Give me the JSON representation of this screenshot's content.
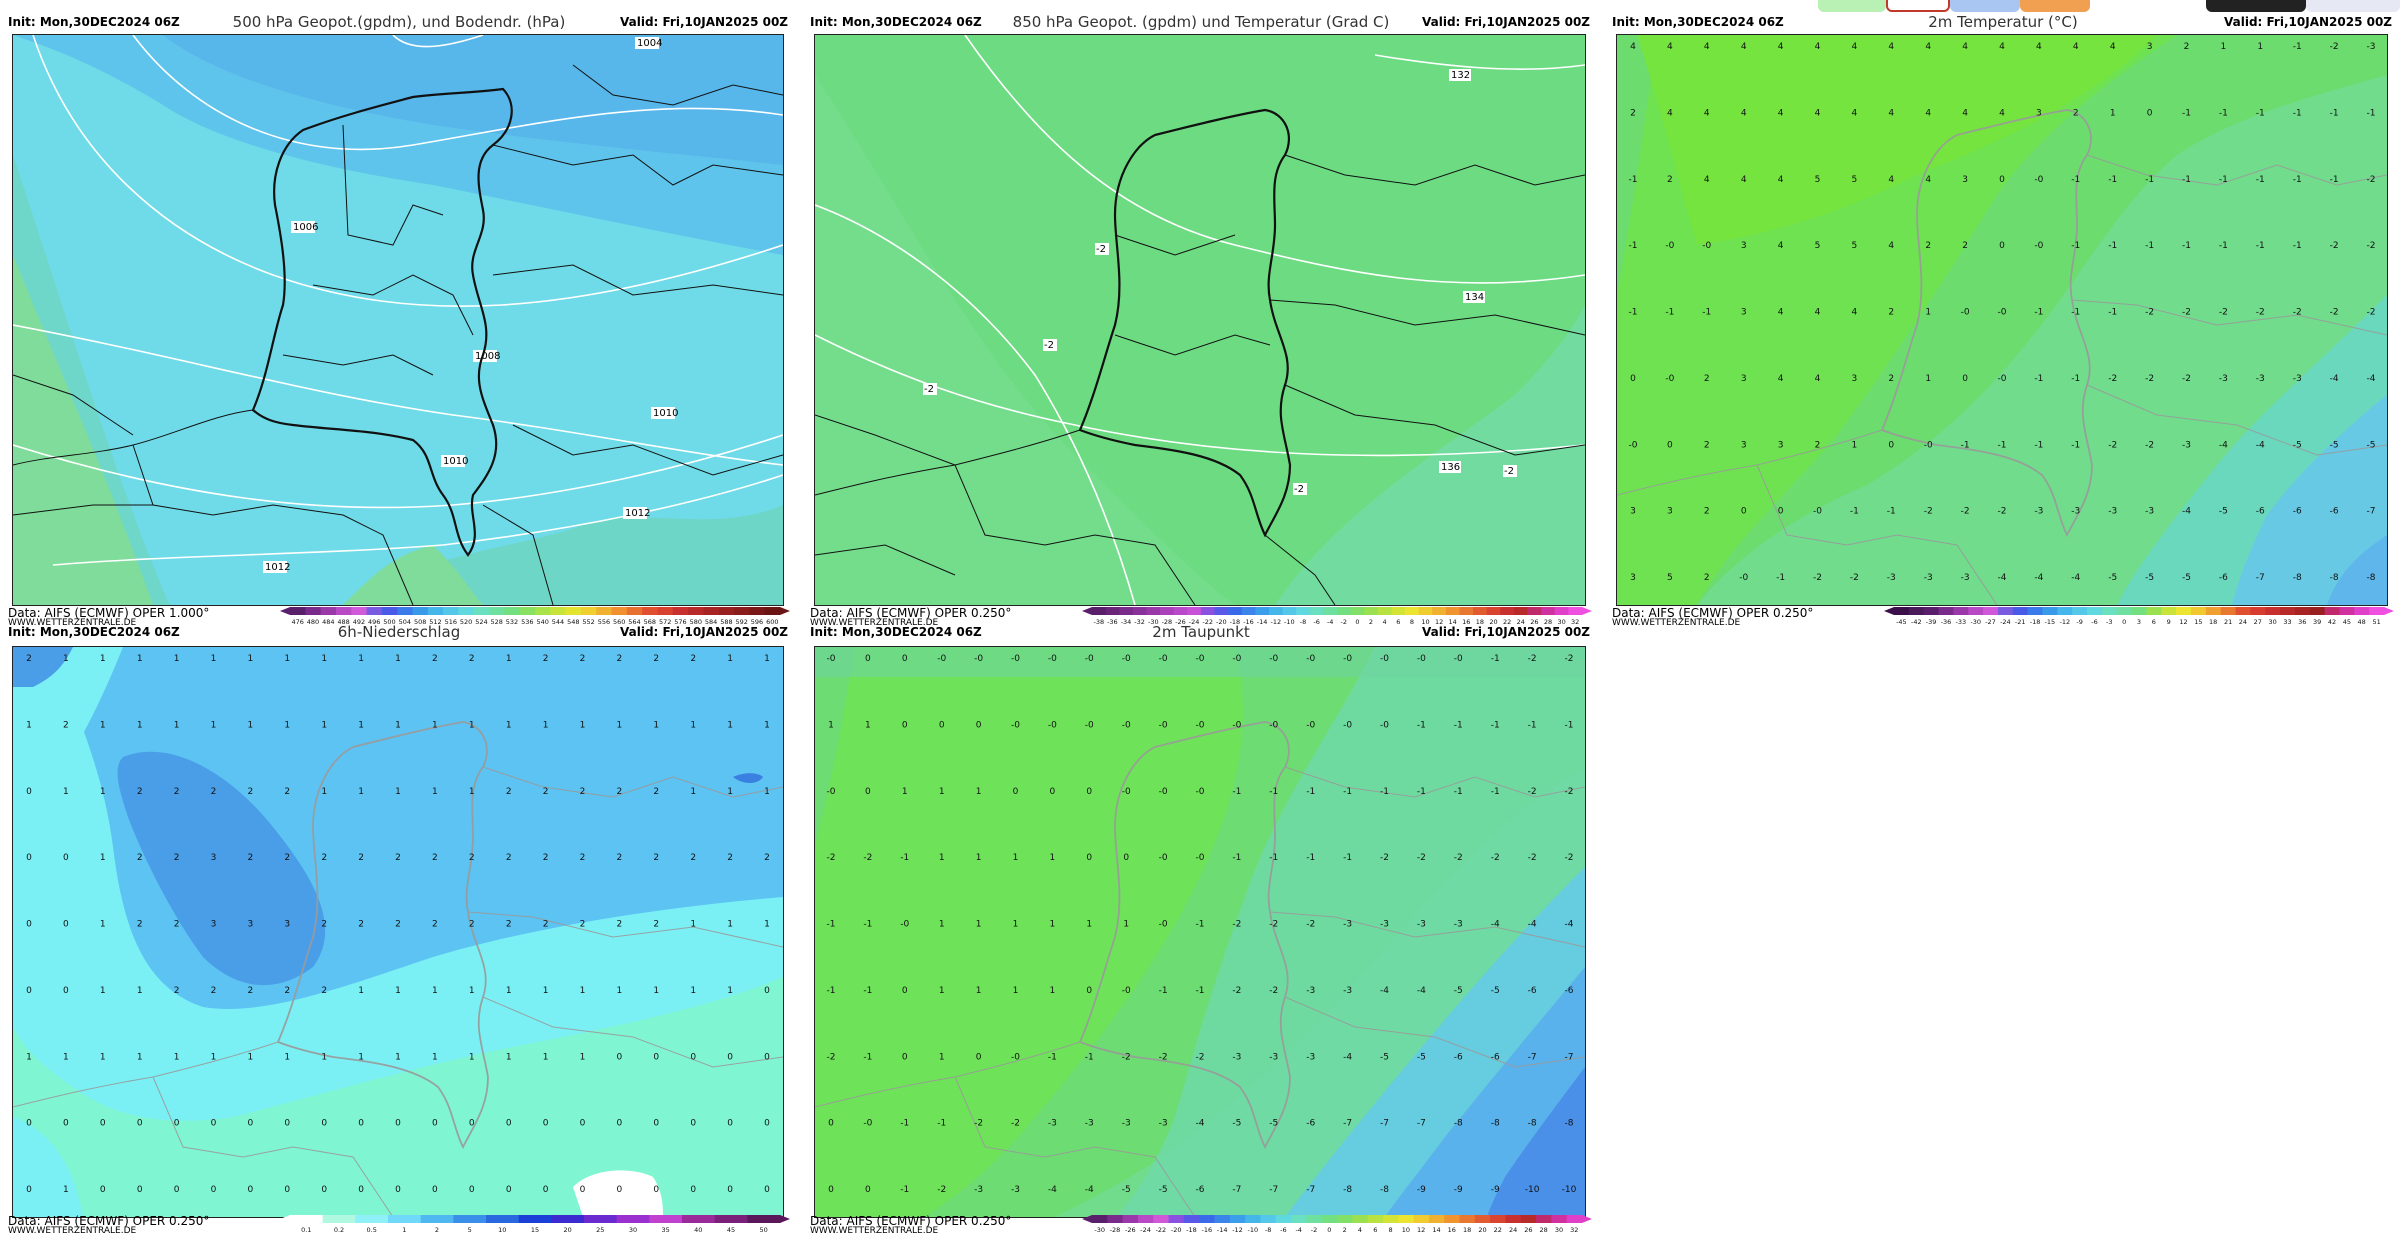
{
  "top_buttons": [
    {
      "name": "green-tab",
      "color": "#b9f0b4"
    },
    {
      "name": "selected-tab",
      "color": "#ffffff",
      "border": "#c0392b"
    },
    {
      "name": "blue-tab",
      "color": "#a9c6f2"
    },
    {
      "name": "orange-tab",
      "color": "#f0a050"
    },
    {
      "name": "dark-tab",
      "color": "#222222"
    },
    {
      "name": "light-tab",
      "color": "#e6e8f4"
    }
  ],
  "panels": [
    {
      "id": "p1",
      "init": "Init: Mon,30DEC2024 06Z",
      "title": "500 hPa Geopot.(gpdm), und Bodendr. (hPa)",
      "valid": "Valid: Fri,10JAN2025 00Z",
      "source": "Data: AIFS (ECMWF) OPER 1.000°",
      "site": "WWW.WETTERZENTRALE.DE",
      "scale_labels": [
        "476",
        "480",
        "484",
        "488",
        "492",
        "496",
        "500",
        "504",
        "508",
        "512",
        "516",
        "520",
        "524",
        "528",
        "532",
        "536",
        "540",
        "544",
        "548",
        "552",
        "556",
        "560",
        "564",
        "568",
        "572",
        "576",
        "580",
        "584",
        "588",
        "592",
        "596",
        "600"
      ],
      "contour_labels": [
        "1004",
        "1006",
        "1008",
        "1010",
        "1010",
        "1012",
        "1012"
      ]
    },
    {
      "id": "p2",
      "init": "Init: Mon,30DEC2024 06Z",
      "title": "850 hPa Geopot. (gpdm) und Temperatur (Grad C)",
      "valid": "Valid: Fri,10JAN2025 00Z",
      "source": "Data: AIFS (ECMWF) OPER 0.250°",
      "site": "WWW.WETTERZENTRALE.DE",
      "scale_labels": [
        "-38",
        "-36",
        "-34",
        "-32",
        "-30",
        "-28",
        "-26",
        "-24",
        "-22",
        "-20",
        "-18",
        "-16",
        "-14",
        "-12",
        "-10",
        "-8",
        "-6",
        "-4",
        "-2",
        "0",
        "2",
        "4",
        "6",
        "8",
        "10",
        "12",
        "14",
        "16",
        "18",
        "20",
        "22",
        "24",
        "26",
        "28",
        "30",
        "32"
      ],
      "contour_labels": [
        "132",
        "134",
        "136",
        "-2",
        "-2",
        "-2",
        "-2",
        "-2"
      ]
    },
    {
      "id": "p3",
      "init": "Init: Mon,30DEC2024 06Z",
      "title": "2m Temperatur (°C)",
      "valid": "Valid: Fri,10JAN2025 00Z",
      "source": "Data: AIFS (ECMWF) OPER 0.250°",
      "site": "WWW.WETTERZENTRALE.DE",
      "scale_labels": [
        "-45",
        "-42",
        "-39",
        "-36",
        "-33",
        "-30",
        "-27",
        "-24",
        "-21",
        "-18",
        "-15",
        "-12",
        "-9",
        "-6",
        "-3",
        "0",
        "3",
        "6",
        "9",
        "12",
        "15",
        "18",
        "21",
        "24",
        "27",
        "30",
        "33",
        "36",
        "39",
        "42",
        "45",
        "48",
        "51"
      ]
    },
    {
      "id": "p4",
      "init": "Init: Mon,30DEC2024 06Z",
      "title": "6h-Niederschlag",
      "valid": "Valid: Fri,10JAN2025 00Z",
      "source": "Data: AIFS (ECMWF) OPER 0.250°",
      "site": "WWW.WETTERZENTRALE.DE",
      "scale_labels": [
        "0.1",
        "0.2",
        "0.5",
        "1",
        "2",
        "5",
        "10",
        "15",
        "20",
        "25",
        "30",
        "35",
        "40",
        "45",
        "50"
      ]
    },
    {
      "id": "p5",
      "init": "Init: Mon,30DEC2024 06Z",
      "title": "2m Taupunkt",
      "valid": "Valid: Fri,10JAN2025 00Z",
      "source": "Data: AIFS (ECMWF) OPER 0.250°",
      "site": "WWW.WETTERZENTRALE.DE",
      "scale_labels": [
        "-30",
        "-28",
        "-26",
        "-24",
        "-22",
        "-20",
        "-18",
        "-16",
        "-14",
        "-12",
        "-10",
        "-8",
        "-6",
        "-4",
        "-2",
        "0",
        "2",
        "4",
        "6",
        "8",
        "10",
        "12",
        "14",
        "16",
        "18",
        "20",
        "22",
        "24",
        "26",
        "28",
        "30",
        "32"
      ]
    }
  ],
  "grids": {
    "p3": [
      [
        "4",
        "4",
        "4",
        "4",
        "4",
        "4",
        "4",
        "4",
        "4",
        "4",
        "4",
        "4",
        "4",
        "4",
        "3",
        "2",
        "1",
        "1",
        "-1",
        "-2",
        "-3"
      ],
      [
        "2",
        "4",
        "4",
        "4",
        "4",
        "4",
        "4",
        "4",
        "4",
        "4",
        "4",
        "3",
        "2",
        "1",
        "0",
        "-1",
        "-1",
        "-1",
        "-1",
        "-1",
        "-1"
      ],
      [
        "-1",
        "2",
        "4",
        "4",
        "4",
        "5",
        "5",
        "4",
        "4",
        "3",
        "0",
        "-0",
        "-1",
        "-1",
        "-1",
        "-1",
        "-1",
        "-1",
        "-1",
        "-1",
        "-2"
      ],
      [
        "-1",
        "-0",
        "-0",
        "3",
        "4",
        "5",
        "5",
        "4",
        "2",
        "2",
        "0",
        "-0",
        "-1",
        "-1",
        "-1",
        "-1",
        "-1",
        "-1",
        "-1",
        "-2",
        "-2"
      ],
      [
        "-1",
        "-1",
        "-1",
        "3",
        "4",
        "4",
        "4",
        "2",
        "1",
        "-0",
        "-0",
        "-1",
        "-1",
        "-1",
        "-2",
        "-2",
        "-2",
        "-2",
        "-2",
        "-2",
        "-2"
      ],
      [
        "0",
        "-0",
        "2",
        "3",
        "4",
        "4",
        "3",
        "2",
        "1",
        "0",
        "-0",
        "-1",
        "-1",
        "-2",
        "-2",
        "-2",
        "-3",
        "-3",
        "-3",
        "-4",
        "-4"
      ],
      [
        "-0",
        "0",
        "2",
        "3",
        "3",
        "2",
        "1",
        "0",
        "-0",
        "-1",
        "-1",
        "-1",
        "-1",
        "-2",
        "-2",
        "-3",
        "-4",
        "-4",
        "-5",
        "-5",
        "-5"
      ],
      [
        "3",
        "3",
        "2",
        "0",
        "0",
        "-0",
        "-1",
        "-1",
        "-2",
        "-2",
        "-2",
        "-3",
        "-3",
        "-3",
        "-3",
        "-4",
        "-5",
        "-6",
        "-6",
        "-6",
        "-7"
      ],
      [
        "3",
        "5",
        "2",
        "-0",
        "-1",
        "-2",
        "-2",
        "-3",
        "-3",
        "-3",
        "-4",
        "-4",
        "-4",
        "-5",
        "-5",
        "-5",
        "-6",
        "-7",
        "-8",
        "-8",
        "-8"
      ]
    ],
    "p4": [
      [
        "2",
        "1",
        "1",
        "1",
        "1",
        "1",
        "1",
        "1",
        "1",
        "1",
        "1",
        "2",
        "2",
        "1",
        "2",
        "2",
        "2",
        "2",
        "2",
        "1",
        "1"
      ],
      [
        "1",
        "2",
        "1",
        "1",
        "1",
        "1",
        "1",
        "1",
        "1",
        "1",
        "1",
        "1",
        "1",
        "1",
        "1",
        "1",
        "1",
        "1",
        "1",
        "1",
        "1"
      ],
      [
        "0",
        "1",
        "1",
        "2",
        "2",
        "2",
        "2",
        "2",
        "1",
        "1",
        "1",
        "1",
        "1",
        "2",
        "2",
        "2",
        "2",
        "2",
        "1",
        "1",
        "1"
      ],
      [
        "0",
        "0",
        "1",
        "2",
        "2",
        "3",
        "2",
        "2",
        "2",
        "2",
        "2",
        "2",
        "2",
        "2",
        "2",
        "2",
        "2",
        "2",
        "2",
        "2",
        "2"
      ],
      [
        "0",
        "0",
        "1",
        "2",
        "2",
        "3",
        "3",
        "3",
        "2",
        "2",
        "2",
        "2",
        "2",
        "2",
        "2",
        "2",
        "2",
        "2",
        "1",
        "1",
        "1"
      ],
      [
        "0",
        "0",
        "1",
        "1",
        "2",
        "2",
        "2",
        "2",
        "2",
        "1",
        "1",
        "1",
        "1",
        "1",
        "1",
        "1",
        "1",
        "1",
        "1",
        "1",
        "0"
      ],
      [
        "1",
        "1",
        "1",
        "1",
        "1",
        "1",
        "1",
        "1",
        "1",
        "1",
        "1",
        "1",
        "1",
        "1",
        "1",
        "1",
        "0",
        "0",
        "0",
        "0",
        "0"
      ],
      [
        "0",
        "0",
        "0",
        "0",
        "0",
        "0",
        "0",
        "0",
        "0",
        "0",
        "0",
        "0",
        "0",
        "0",
        "0",
        "0",
        "0",
        "0",
        "0",
        "0",
        "0"
      ],
      [
        "0",
        "1",
        "0",
        "0",
        "0",
        "0",
        "0",
        "0",
        "0",
        "0",
        "0",
        "0",
        "0",
        "0",
        "0",
        "0",
        "0",
        "0",
        "0",
        "0",
        "0"
      ]
    ],
    "p5": [
      [
        "-0",
        "0",
        "0",
        "-0",
        "-0",
        "-0",
        "-0",
        "-0",
        "-0",
        "-0",
        "-0",
        "-0",
        "-0",
        "-0",
        "-0",
        "-0",
        "-0",
        "-0",
        "-1",
        "-2",
        "-2"
      ],
      [
        "1",
        "1",
        "0",
        "0",
        "0",
        "-0",
        "-0",
        "-0",
        "-0",
        "-0",
        "-0",
        "-0",
        "-0",
        "-0",
        "-0",
        "-0",
        "-1",
        "-1",
        "-1",
        "-1",
        "-1"
      ],
      [
        "-0",
        "0",
        "1",
        "1",
        "1",
        "0",
        "0",
        "0",
        "-0",
        "-0",
        "-0",
        "-1",
        "-1",
        "-1",
        "-1",
        "-1",
        "-1",
        "-1",
        "-1",
        "-2",
        "-2"
      ],
      [
        "-2",
        "-2",
        "-1",
        "1",
        "1",
        "1",
        "1",
        "0",
        "0",
        "-0",
        "-0",
        "-1",
        "-1",
        "-1",
        "-1",
        "-2",
        "-2",
        "-2",
        "-2",
        "-2",
        "-2"
      ],
      [
        "-1",
        "-1",
        "-0",
        "1",
        "1",
        "1",
        "1",
        "1",
        "1",
        "-0",
        "-1",
        "-2",
        "-2",
        "-2",
        "-3",
        "-3",
        "-3",
        "-3",
        "-4",
        "-4",
        "-4"
      ],
      [
        "-1",
        "-1",
        "0",
        "1",
        "1",
        "1",
        "1",
        "0",
        "-0",
        "-1",
        "-1",
        "-2",
        "-2",
        "-3",
        "-3",
        "-4",
        "-4",
        "-5",
        "-5",
        "-6",
        "-6"
      ],
      [
        "-2",
        "-1",
        "0",
        "1",
        "0",
        "-0",
        "-1",
        "-1",
        "-2",
        "-2",
        "-2",
        "-3",
        "-3",
        "-3",
        "-4",
        "-5",
        "-5",
        "-6",
        "-6",
        "-7",
        "-7"
      ],
      [
        "0",
        "-0",
        "-1",
        "-1",
        "-2",
        "-2",
        "-3",
        "-3",
        "-3",
        "-3",
        "-4",
        "-5",
        "-5",
        "-6",
        "-7",
        "-7",
        "-7",
        "-8",
        "-8",
        "-8",
        "-8"
      ],
      [
        "0",
        "0",
        "-1",
        "-2",
        "-3",
        "-3",
        "-4",
        "-4",
        "-5",
        "-5",
        "-6",
        "-7",
        "-7",
        "-7",
        "-8",
        "-8",
        "-9",
        "-9",
        "-9",
        "-10",
        "-10"
      ]
    ]
  },
  "colors": {
    "border": "#222222",
    "contour": "#ffffff",
    "coast": "#111111",
    "coast_grey": "#9a9a9a"
  }
}
